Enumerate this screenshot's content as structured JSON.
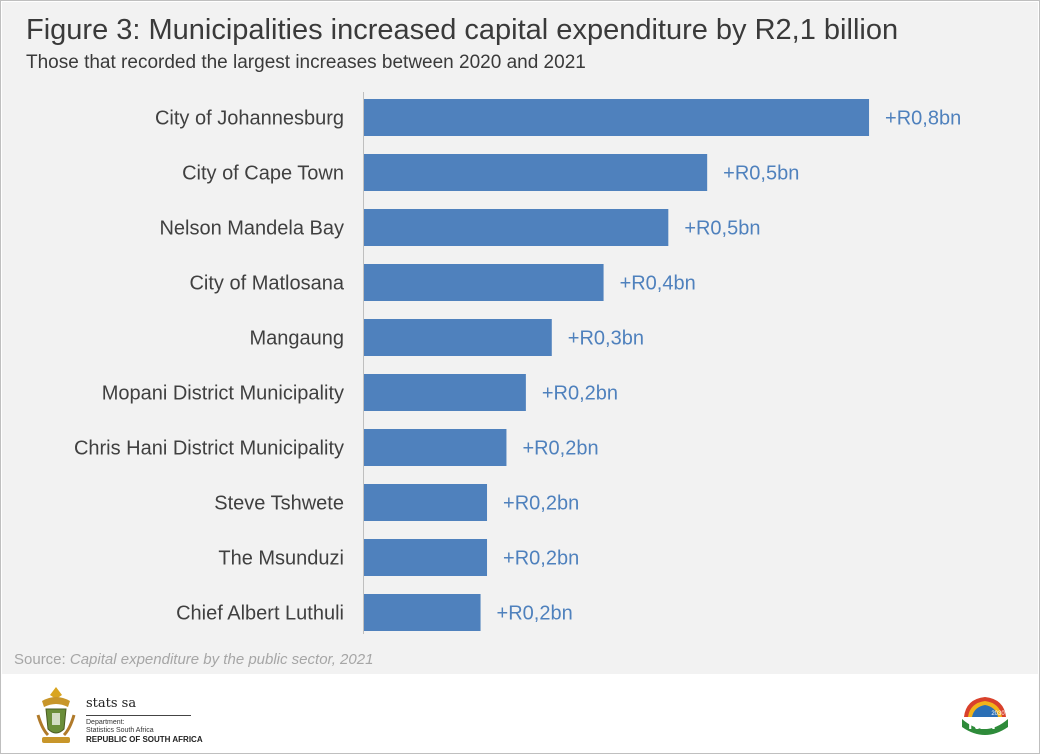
{
  "header": {
    "title": "Figure 3: Municipalities increased capital expenditure by R2,1 billion",
    "subtitle": "Those that recorded the largest increases between 2020 and 2021"
  },
  "chart_data": {
    "type": "bar",
    "orientation": "horizontal",
    "categories": [
      "City of Johannesburg",
      "City of Cape Town",
      "Nelson Mandela Bay",
      "City of Matlosana",
      "Mangaung",
      "Mopani District Municipality",
      "Chris Hani District Municipality",
      "Steve Tshwete",
      "The Msunduzi",
      "Chief Albert Luthuli"
    ],
    "values": [
      0.78,
      0.53,
      0.47,
      0.37,
      0.29,
      0.25,
      0.22,
      0.19,
      0.19,
      0.18
    ],
    "data_labels": [
      "+R0,8bn",
      "+R0,5bn",
      "+R0,5bn",
      "+R0,4bn",
      "+R0,3bn",
      "+R0,2bn",
      "+R0,2bn",
      "+R0,2bn",
      "+R0,2bn",
      "+R0,2bn"
    ],
    "unit": "R billion",
    "xlim": [
      0,
      0.8
    ],
    "grid": false,
    "legend": false,
    "bar_color": "#4f81bd",
    "label_color": "#4f81bd"
  },
  "source": {
    "prefix": "Source: ",
    "title": "Capital expenditure by the public sector, 2021"
  },
  "footer": {
    "org_name": "stats sa",
    "department": "Department:",
    "department_name": "Statistics South Africa",
    "country": "REPUBLIC OF SOUTH AFRICA",
    "ndp_text": "NDP",
    "ndp_year": "2030"
  }
}
